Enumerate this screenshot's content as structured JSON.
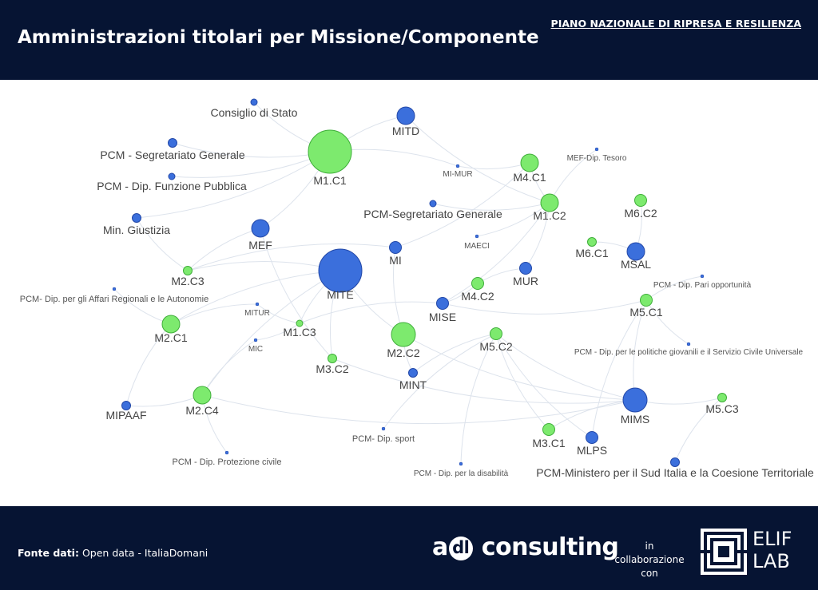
{
  "header": {
    "title": "Amministrazioni titolari per Missione/Componente",
    "top_link": "PIANO NAZIONALE DI RIPRESA E RESILIENZA"
  },
  "colors": {
    "header_bg": "#061433",
    "component_node": "#7dea6e",
    "component_stroke": "#3fae3a",
    "administration_node": "#3b6fdc",
    "administration_stroke": "#2348a8",
    "edge": "#dde3ec",
    "label": "#444444"
  },
  "graph": {
    "nodes": [
      {
        "id": "M1.C1",
        "label": "M1.C1",
        "kind": "component",
        "size": "xl"
      },
      {
        "id": "MITE",
        "label": "MITE",
        "kind": "administration",
        "size": "xl"
      },
      {
        "id": "MIMS",
        "label": "MIMS",
        "kind": "administration",
        "size": "l"
      },
      {
        "id": "M2.C2",
        "label": "M2.C2",
        "kind": "component",
        "size": "l"
      },
      {
        "id": "MEF",
        "label": "MEF",
        "kind": "administration",
        "size": "m"
      },
      {
        "id": "MITD",
        "label": "MITD",
        "kind": "administration",
        "size": "m"
      },
      {
        "id": "M2.C4",
        "label": "M2.C4",
        "kind": "component",
        "size": "m"
      },
      {
        "id": "M2.C1",
        "label": "M2.C1",
        "kind": "component",
        "size": "m"
      },
      {
        "id": "M1.C2",
        "label": "M1.C2",
        "kind": "component",
        "size": "m"
      },
      {
        "id": "M4.C1",
        "label": "M4.C1",
        "kind": "component",
        "size": "m"
      },
      {
        "id": "MSAL",
        "label": "MSAL",
        "kind": "administration",
        "size": "m"
      },
      {
        "id": "MISE",
        "label": "MISE",
        "kind": "administration",
        "size": "s"
      },
      {
        "id": "MUR",
        "label": "MUR",
        "kind": "administration",
        "size": "s"
      },
      {
        "id": "MLPS",
        "label": "MLPS",
        "kind": "administration",
        "size": "s"
      },
      {
        "id": "M5.C2",
        "label": "M5.C2",
        "kind": "component",
        "size": "s"
      },
      {
        "id": "M4.C2",
        "label": "M4.C2",
        "kind": "component",
        "size": "s"
      },
      {
        "id": "M3.C1",
        "label": "M3.C1",
        "kind": "component",
        "size": "s"
      },
      {
        "id": "M5.C1",
        "label": "M5.C1",
        "kind": "component",
        "size": "s"
      },
      {
        "id": "M6.C2",
        "label": "M6.C2",
        "kind": "component",
        "size": "s"
      },
      {
        "id": "M5.C3",
        "label": "M5.C3",
        "kind": "component",
        "size": "xs"
      },
      {
        "id": "M6.C1",
        "label": "M6.C1",
        "kind": "component",
        "size": "xs"
      },
      {
        "id": "M2.C3",
        "label": "M2.C3",
        "kind": "component",
        "size": "xs"
      },
      {
        "id": "M3.C2",
        "label": "M3.C2",
        "kind": "component",
        "size": "xs"
      },
      {
        "id": "M1.C3",
        "label": "M1.C3",
        "kind": "component",
        "size": "xxs"
      },
      {
        "id": "MI",
        "label": "MI",
        "kind": "administration",
        "size": "s"
      },
      {
        "id": "MINT",
        "label": "MINT",
        "kind": "administration",
        "size": "xs"
      },
      {
        "id": "MIPAAF",
        "label": "MIPAAF",
        "kind": "administration",
        "size": "xs"
      },
      {
        "id": "MinGiustizia",
        "label": "Min. Giustizia",
        "kind": "administration",
        "size": "xs"
      },
      {
        "id": "PCMSegGen",
        "label": "PCM - Segretariato Generale",
        "kind": "administration",
        "size": "xs"
      },
      {
        "id": "PCMFunzPub",
        "label": "PCM - Dip. Funzione Pubblica",
        "kind": "administration",
        "size": "xxs"
      },
      {
        "id": "ConsiglioStato",
        "label": "Consiglio di Stato",
        "kind": "administration",
        "size": "xxs"
      },
      {
        "id": "PCMSegGen2",
        "label": "PCM-Segretariato Generale",
        "kind": "administration",
        "size": "xxs"
      },
      {
        "id": "PCMSud",
        "label": "PCM-Ministero per il Sud Italia e la Coesione Territoriale",
        "kind": "administration",
        "size": "xs"
      },
      {
        "id": "MIMUR",
        "label": "MI-MUR",
        "kind": "administration",
        "size": "tiny"
      },
      {
        "id": "MEFTesoro",
        "label": "MEF-Dip. Tesoro",
        "kind": "administration",
        "size": "tiny"
      },
      {
        "id": "MAECI",
        "label": "MAECI",
        "kind": "administration",
        "size": "tiny"
      },
      {
        "id": "MITUR",
        "label": "MITUR",
        "kind": "administration",
        "size": "tiny"
      },
      {
        "id": "MIC",
        "label": "MIC",
        "kind": "administration",
        "size": "tiny"
      },
      {
        "id": "PCMAffReg",
        "label": "PCM- Dip. per gli Affari Regionali e le Autonomie",
        "kind": "administration",
        "size": "tiny"
      },
      {
        "id": "PCMPariOpp",
        "label": "PCM - Dip. Pari opportunità",
        "kind": "administration",
        "size": "tiny"
      },
      {
        "id": "PCMGiovani",
        "label": "PCM - Dip. per le politiche giovanili e il Servizio Civile Universale",
        "kind": "administration",
        "size": "tiny"
      },
      {
        "id": "PCMSport",
        "label": "PCM- Dip. sport",
        "kind": "administration",
        "size": "tiny"
      },
      {
        "id": "PCMDisab",
        "label": "PCM - Dip. per la disabilità",
        "kind": "administration",
        "size": "tiny"
      },
      {
        "id": "PCMProtCiv",
        "label": "PCM - Dip. Protezione civile",
        "kind": "administration",
        "size": "tiny"
      }
    ],
    "edges": [
      [
        "ConsiglioStato",
        "M1.C1"
      ],
      [
        "PCMSegGen",
        "M1.C1"
      ],
      [
        "PCMFunzPub",
        "M1.C1"
      ],
      [
        "MinGiustizia",
        "M1.C1"
      ],
      [
        "MITD",
        "M1.C1"
      ],
      [
        "MEF",
        "M1.C1"
      ],
      [
        "MITD",
        "M1.C2"
      ],
      [
        "MIMUR",
        "M4.C1"
      ],
      [
        "MIMUR",
        "M1.C1"
      ],
      [
        "M4.C1",
        "M1.C2"
      ],
      [
        "MEFTesoro",
        "M1.C2"
      ],
      [
        "PCMSegGen2",
        "M1.C2"
      ],
      [
        "MI",
        "M4.C1"
      ],
      [
        "MI",
        "M2.C3"
      ],
      [
        "MAECI",
        "M1.C2"
      ],
      [
        "MUR",
        "M4.C2"
      ],
      [
        "MUR",
        "M1.C2"
      ],
      [
        "MISE",
        "M1.C2"
      ],
      [
        "MISE",
        "M4.C2"
      ],
      [
        "MISE",
        "M5.C1"
      ],
      [
        "MISE",
        "M1.C3"
      ],
      [
        "MSAL",
        "M6.C1"
      ],
      [
        "MSAL",
        "M6.C2"
      ],
      [
        "PCMPariOpp",
        "M5.C1"
      ],
      [
        "M5.C1",
        "PCMGiovani"
      ],
      [
        "M5.C1",
        "MLPS"
      ],
      [
        "MITE",
        "M2.C3"
      ],
      [
        "MITE",
        "M2.C1"
      ],
      [
        "MITE",
        "M2.C2"
      ],
      [
        "MITE",
        "M2.C4"
      ],
      [
        "MITE",
        "M3.C2"
      ],
      [
        "MITE",
        "M1.C3"
      ],
      [
        "MEF",
        "M2.C3"
      ],
      [
        "MEF",
        "M3.C2"
      ],
      [
        "MinGiustizia",
        "M2.C3"
      ],
      [
        "PCMAffReg",
        "M2.C1"
      ],
      [
        "MITUR",
        "M2.C1"
      ],
      [
        "MITUR",
        "M1.C3"
      ],
      [
        "MIC",
        "M2.C4"
      ],
      [
        "MIC",
        "M1.C3"
      ],
      [
        "M2.C1",
        "MIPAAF"
      ],
      [
        "MIPAAF",
        "M2.C4"
      ],
      [
        "M2.C4",
        "MIMS"
      ],
      [
        "M2.C4",
        "PCMProtCiv"
      ],
      [
        "M2.C2",
        "MINT"
      ],
      [
        "M2.C2",
        "MIMS"
      ],
      [
        "M3.C2",
        "MIMS"
      ],
      [
        "M5.C2",
        "MINT"
      ],
      [
        "M5.C2",
        "MIMS"
      ],
      [
        "M5.C2",
        "MLPS"
      ],
      [
        "M5.C2",
        "PCMSport"
      ],
      [
        "M5.C2",
        "PCMDisab"
      ],
      [
        "M5.C2",
        "M3.C1"
      ],
      [
        "MIMS",
        "M3.C1"
      ],
      [
        "MIMS",
        "M5.C3"
      ],
      [
        "M5.C3",
        "PCMSud"
      ],
      [
        "M5.C1",
        "MIMS"
      ],
      [
        "MI",
        "M2.C2"
      ]
    ]
  },
  "footer": {
    "source_label": "Fonte dati:",
    "source_value": "Open data - ItaliaDomani",
    "brand_a": "a",
    "brand_dl": "dl",
    "brand_rest": "consulting",
    "collab_line1": "in",
    "collab_line2": "collaborazione con",
    "partner_line1": "ELIF",
    "partner_line2": "LAB"
  }
}
